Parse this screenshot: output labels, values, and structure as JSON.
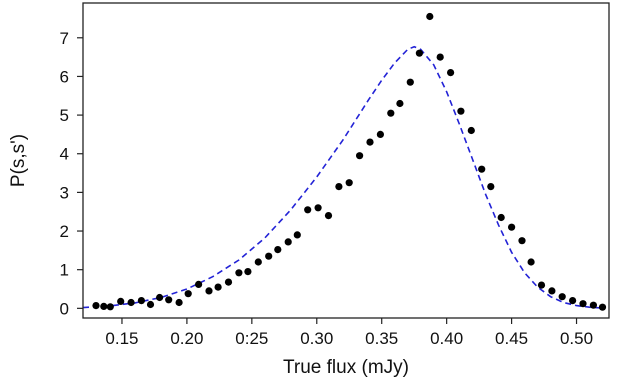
{
  "chart_data": {
    "type": "scatter",
    "xlabel": "True flux  (mJy)",
    "ylabel": "P(s,s')",
    "xlim": [
      0.12,
      0.525
    ],
    "ylim": [
      -0.25,
      7.9
    ],
    "xticks": [
      {
        "value": 0.15,
        "label": "0.15"
      },
      {
        "value": 0.2,
        "label": "0.20"
      },
      {
        "value": 0.25,
        "label": "0:25"
      },
      {
        "value": 0.3,
        "label": "0.30"
      },
      {
        "value": 0.35,
        "label": "0.35"
      },
      {
        "value": 0.4,
        "label": "0.40"
      },
      {
        "value": 0.45,
        "label": "0.45"
      },
      {
        "value": 0.5,
        "label": "0.50"
      }
    ],
    "yticks": [
      {
        "value": 0,
        "label": "0"
      },
      {
        "value": 1,
        "label": "1"
      },
      {
        "value": 2,
        "label": "2"
      },
      {
        "value": 3,
        "label": "3"
      },
      {
        "value": 4,
        "label": "4"
      },
      {
        "value": 5,
        "label": "5"
      },
      {
        "value": 6,
        "label": "6"
      },
      {
        "value": 7,
        "label": "7"
      }
    ],
    "grid": false,
    "series": [
      {
        "kind": "points",
        "color": "#000000",
        "x": [
          0.13,
          0.136,
          0.141,
          0.149,
          0.157,
          0.165,
          0.172,
          0.179,
          0.186,
          0.194,
          0.201,
          0.209,
          0.217,
          0.224,
          0.232,
          0.24,
          0.247,
          0.255,
          0.263,
          0.27,
          0.278,
          0.285,
          0.293,
          0.301,
          0.309,
          0.317,
          0.325,
          0.333,
          0.341,
          0.349,
          0.357,
          0.364,
          0.372,
          0.379,
          0.387,
          0.395,
          0.403,
          0.411,
          0.419,
          0.427,
          0.434,
          0.442,
          0.45,
          0.458,
          0.465,
          0.473,
          0.481,
          0.489,
          0.497,
          0.505,
          0.513,
          0.52
        ],
        "y": [
          0.07,
          0.05,
          0.04,
          0.18,
          0.15,
          0.2,
          0.1,
          0.28,
          0.22,
          0.15,
          0.38,
          0.62,
          0.45,
          0.55,
          0.68,
          0.92,
          0.95,
          1.2,
          1.35,
          1.52,
          1.72,
          1.9,
          2.55,
          2.6,
          2.4,
          3.15,
          3.25,
          3.95,
          4.3,
          4.5,
          5.05,
          5.3,
          5.85,
          6.6,
          7.55,
          6.5,
          6.1,
          5.1,
          4.6,
          3.6,
          3.15,
          2.35,
          2.1,
          1.75,
          1.2,
          0.6,
          0.45,
          0.3,
          0.2,
          0.12,
          0.08,
          0.03
        ]
      },
      {
        "kind": "fit-curve",
        "style": "dashed",
        "color": "#2323d6",
        "x": [
          0.12,
          0.14,
          0.16,
          0.18,
          0.2,
          0.22,
          0.24,
          0.26,
          0.28,
          0.3,
          0.32,
          0.34,
          0.35,
          0.36,
          0.37,
          0.375,
          0.38,
          0.39,
          0.4,
          0.41,
          0.42,
          0.43,
          0.44,
          0.45,
          0.46,
          0.47,
          0.48,
          0.49,
          0.5,
          0.51,
          0.52
        ],
        "y": [
          0.02,
          0.06,
          0.14,
          0.28,
          0.5,
          0.82,
          1.25,
          1.82,
          2.55,
          3.4,
          4.35,
          5.4,
          5.9,
          6.35,
          6.7,
          6.77,
          6.7,
          6.3,
          5.6,
          4.75,
          3.85,
          2.95,
          2.15,
          1.45,
          0.92,
          0.55,
          0.3,
          0.15,
          0.07,
          0.03,
          0.01
        ]
      }
    ]
  }
}
